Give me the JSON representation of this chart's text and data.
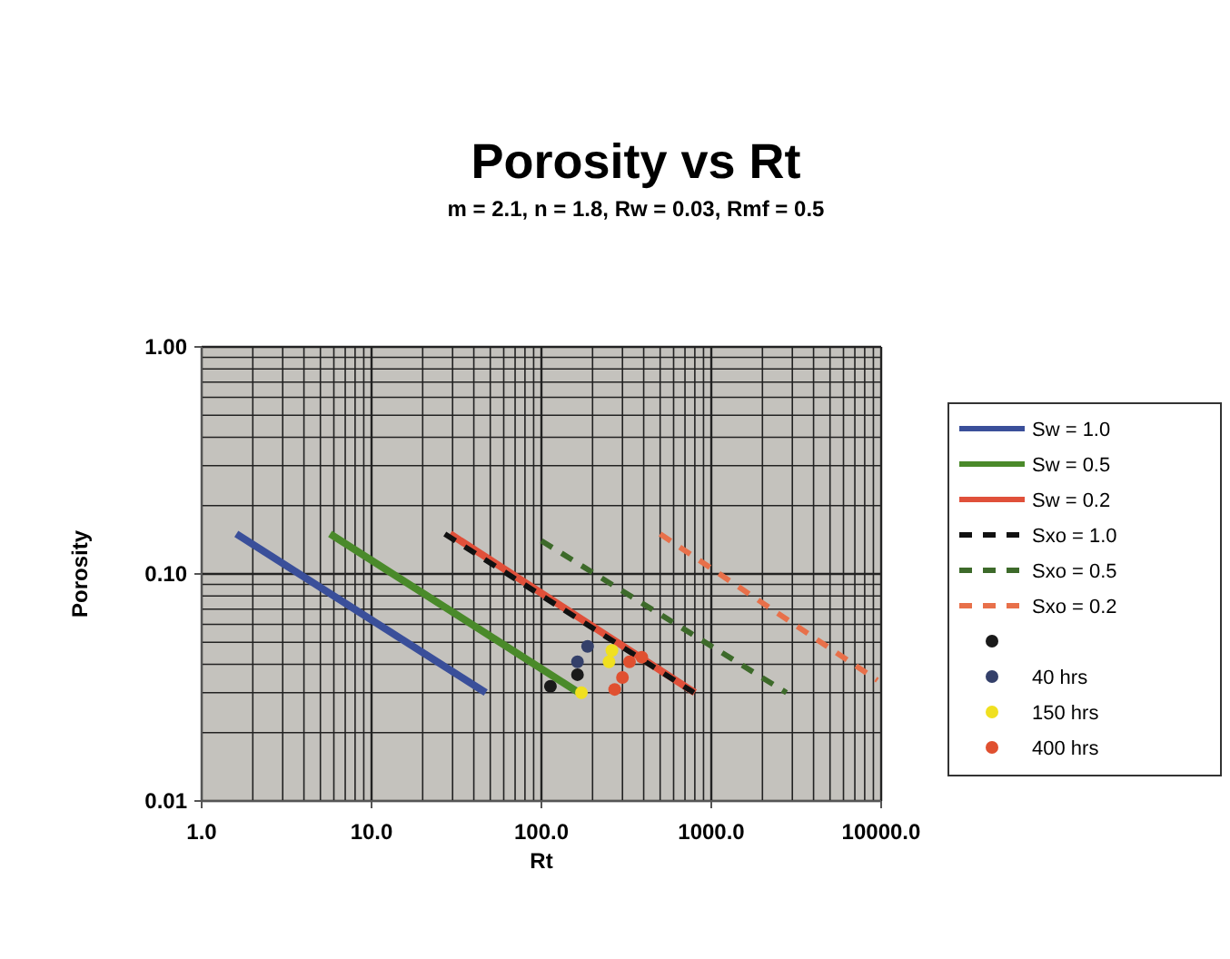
{
  "chart_data": {
    "type": "line",
    "title": "Porosity vs Rt",
    "subtitle": "m = 2.1, n = 1.8, Rw = 0.03, Rmf = 0.5",
    "xlabel": "Rt",
    "ylabel": "Porosity",
    "log": "xy",
    "grid": true,
    "legend": "right",
    "xlim": [
      1,
      10000
    ],
    "ylim": [
      0.01,
      1
    ],
    "xticks": [
      {
        "value": 1,
        "label": "1.0"
      },
      {
        "value": 10,
        "label": "10.0"
      },
      {
        "value": 100,
        "label": "100.0"
      },
      {
        "value": 1000,
        "label": "1000.0"
      },
      {
        "value": 10000,
        "label": "10000.0"
      }
    ],
    "yticks": [
      {
        "value": 0.01,
        "label": "0.01"
      },
      {
        "value": 0.1,
        "label": "0.10"
      },
      {
        "value": 1,
        "label": "1.00"
      }
    ],
    "series": [
      {
        "name": "Sw = 1.0",
        "color": "#3a4f9a",
        "line_style": "solid",
        "marker": "none",
        "x": [
          1.6,
          47
        ],
        "values": [
          0.15,
          0.03
        ]
      },
      {
        "name": "Sw = 0.5",
        "color": "#4a8a2a",
        "line_style": "solid",
        "marker": "none",
        "x": [
          5.7,
          166
        ],
        "values": [
          0.15,
          0.03
        ]
      },
      {
        "name": "Sw = 0.2",
        "color": "#e0503a",
        "line_style": "solid",
        "marker": "none",
        "x": [
          29,
          800
        ],
        "values": [
          0.15,
          0.03
        ]
      },
      {
        "name": "Sxo = 1.0",
        "color": "#111111",
        "line_style": "dashed",
        "marker": "none",
        "x": [
          27,
          790
        ],
        "values": [
          0.15,
          0.03
        ]
      },
      {
        "name": "Sxo = 0.5",
        "color": "#3d6a2a",
        "line_style": "dashed",
        "marker": "none",
        "x": [
          100,
          2770
        ],
        "values": [
          0.14,
          0.03
        ]
      },
      {
        "name": "Sxo = 0.2",
        "color": "#e8704a",
        "line_style": "dashed",
        "marker": "none",
        "x": [
          500,
          9500
        ],
        "values": [
          0.15,
          0.034
        ]
      },
      {
        "type": "scatter",
        "color": "#1a1a1a",
        "marker": "circle",
        "x": [
          113,
          163
        ],
        "values": [
          0.032,
          0.036
        ]
      },
      {
        "name": "40 hrs",
        "type": "scatter",
        "color": "#34406a",
        "marker": "circle",
        "x": [
          163,
          187
        ],
        "values": [
          0.041,
          0.048
        ]
      },
      {
        "name": "150 hrs",
        "type": "scatter",
        "color": "#f0e020",
        "marker": "circle",
        "x": [
          172,
          250,
          260
        ],
        "values": [
          0.03,
          0.041,
          0.046
        ]
      },
      {
        "name": "400 hrs",
        "type": "scatter",
        "color": "#e05030",
        "marker": "circle",
        "x": [
          270,
          300,
          330,
          390
        ],
        "values": [
          0.031,
          0.035,
          0.041,
          0.043
        ]
      }
    ]
  }
}
